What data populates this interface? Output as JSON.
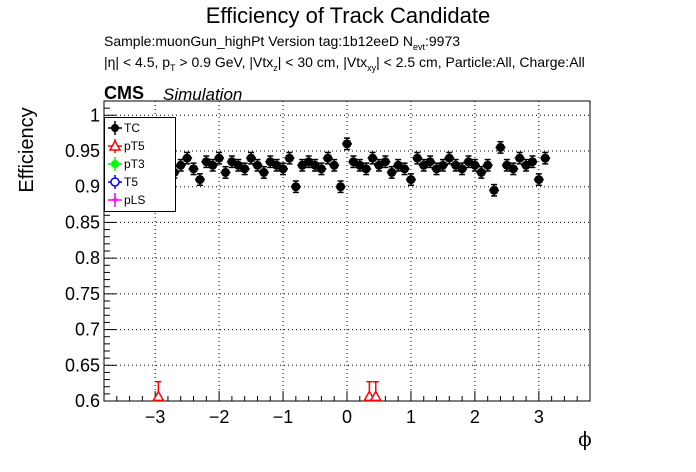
{
  "header": {
    "title": "Efficiency of Track Candidate",
    "subtitle_line1_parts": [
      "Sample:muonGun_highPt   Version tag:1b12eeD  N",
      "evt",
      ":9973"
    ],
    "subtitle_line2_parts": [
      "|η| < 4.5, p",
      "T",
      " > 0.9 GeV, |Vtx",
      "z",
      "| < 30 cm, |Vtx",
      "xy",
      "| < 2.5 cm, Particle:All, Charge:All"
    ],
    "cms_label": "CMS",
    "simulation_label": "Simulation"
  },
  "chart_data": {
    "type": "scatter",
    "title": "Efficiency of Track Candidate",
    "xlabel": "ϕ",
    "ylabel": "Efficiency",
    "xlim": [
      -3.8,
      3.8
    ],
    "ylim": [
      0.6,
      1.02
    ],
    "xticks": [
      -3,
      -2,
      -1,
      0,
      1,
      2,
      3
    ],
    "xtick_labels": [
      "−3",
      "−2",
      "−1",
      "0",
      "1",
      "2",
      "3"
    ],
    "yticks": [
      0.6,
      0.65,
      0.7,
      0.75,
      0.8,
      0.85,
      0.9,
      0.95,
      1
    ],
    "ytick_labels": [
      "0.6",
      "0.65",
      "0.7",
      "0.75",
      "0.8",
      "0.85",
      "0.9",
      "0.95",
      "1"
    ],
    "grid": true,
    "legend_position": "top-left",
    "series": [
      {
        "name": "TC",
        "color": "#000000",
        "marker": "filled-circle",
        "x": [
          -3.1,
          -3.0,
          -2.9,
          -2.8,
          -2.7,
          -2.6,
          -2.5,
          -2.4,
          -2.3,
          -2.2,
          -2.1,
          -2.0,
          -1.9,
          -1.8,
          -1.7,
          -1.6,
          -1.5,
          -1.4,
          -1.3,
          -1.2,
          -1.1,
          -1.0,
          -0.9,
          -0.8,
          -0.7,
          -0.6,
          -0.5,
          -0.4,
          -0.3,
          -0.2,
          -0.1,
          0.0,
          0.1,
          0.2,
          0.3,
          0.4,
          0.5,
          0.6,
          0.7,
          0.8,
          0.9,
          1.0,
          1.1,
          1.2,
          1.3,
          1.4,
          1.5,
          1.6,
          1.7,
          1.8,
          1.9,
          2.0,
          2.1,
          2.2,
          2.3,
          2.4,
          2.5,
          2.6,
          2.7,
          2.8,
          2.9,
          3.0,
          3.1
        ],
        "y": [
          0.93,
          0.92,
          0.925,
          0.935,
          0.92,
          0.93,
          0.94,
          0.925,
          0.91,
          0.935,
          0.93,
          0.94,
          0.92,
          0.935,
          0.93,
          0.925,
          0.94,
          0.93,
          0.92,
          0.935,
          0.93,
          0.925,
          0.94,
          0.9,
          0.93,
          0.935,
          0.93,
          0.925,
          0.94,
          0.93,
          0.9,
          0.96,
          0.935,
          0.93,
          0.925,
          0.94,
          0.93,
          0.935,
          0.92,
          0.93,
          0.925,
          0.91,
          0.94,
          0.93,
          0.935,
          0.925,
          0.93,
          0.94,
          0.93,
          0.925,
          0.935,
          0.93,
          0.92,
          0.93,
          0.895,
          0.955,
          0.93,
          0.925,
          0.94,
          0.93,
          0.935,
          0.91,
          0.94
        ],
        "y_err": 0.008
      },
      {
        "name": "pT5",
        "color": "#ff0000",
        "marker": "open-triangle",
        "x": [
          -2.95,
          0.35,
          0.45
        ],
        "y": [
          0.605,
          0.605,
          0.605
        ],
        "y_err_up": 0.022
      },
      {
        "name": "pT3",
        "color": "#00ff00",
        "marker": "filled-circle",
        "x": [],
        "y": []
      },
      {
        "name": "T5",
        "color": "#0000ff",
        "marker": "open-circle",
        "x": [],
        "y": []
      },
      {
        "name": "pLS",
        "color": "#ff00ff",
        "marker": "star",
        "x": [],
        "y": []
      }
    ]
  }
}
